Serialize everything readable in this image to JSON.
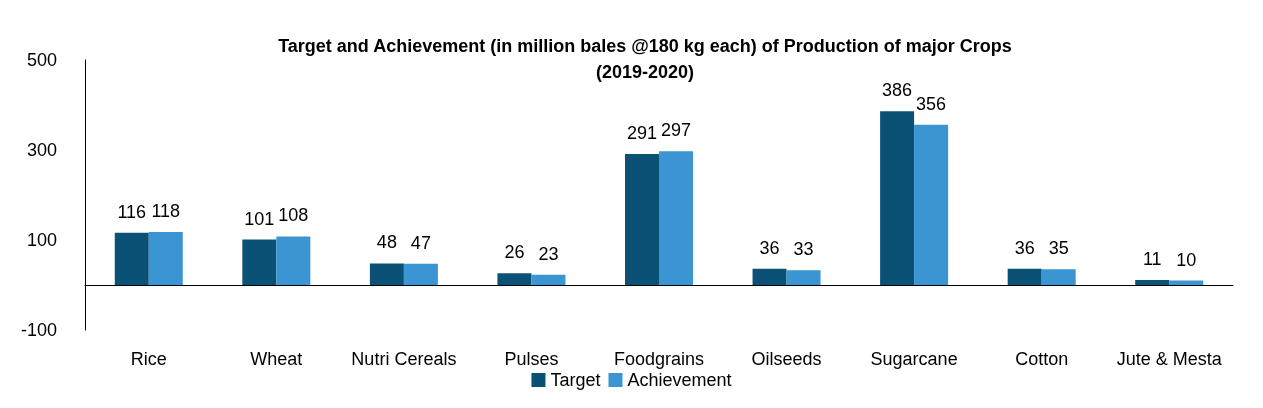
{
  "chart_data": {
    "type": "bar",
    "title": "Target and Achievement (in million bales @180 kg each) of Production of major Crops\n(2019-2020)",
    "categories": [
      "Rice",
      "Wheat",
      "Nutri Cereals",
      "Pulses",
      "Foodgrains",
      "Oilseeds",
      "Sugarcane",
      "Cotton",
      "Jute & Mesta"
    ],
    "series": [
      {
        "name": "Target",
        "color": "#0b5075",
        "values": [
          116,
          101,
          48,
          26,
          291,
          36,
          386,
          36,
          11
        ]
      },
      {
        "name": "Achievement",
        "color": "#3a95d2",
        "values": [
          118,
          108,
          47,
          23,
          297,
          33,
          356,
          35,
          10
        ]
      }
    ],
    "ylim": [
      -100,
      500
    ],
    "yticks": [
      -100,
      100,
      300,
      500
    ],
    "grid": false,
    "legend": "bottom",
    "data_labels": true
  }
}
